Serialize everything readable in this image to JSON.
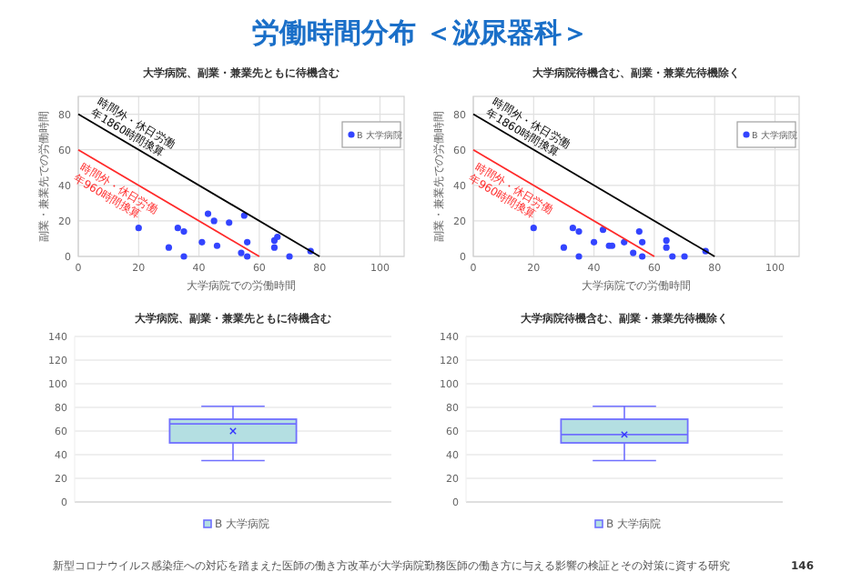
{
  "chart_data": [
    {
      "type": "scatter",
      "title": "大学病院、副業・兼業先ともに待機含む",
      "xlabel": "大学病院での労働時間",
      "ylabel": "副業・兼業先での労働時間",
      "xlim": [
        0,
        108
      ],
      "ylim": [
        0,
        90
      ],
      "xticks": [
        0,
        20,
        40,
        60,
        80,
        100
      ],
      "yticks": [
        0,
        20,
        40,
        60,
        80
      ],
      "grid": true,
      "legend": "top right",
      "annotations": [
        "労働時間分布 ＜泌尿器科＞",
        "新型コロナウイルス感染症への対応を踏まえた医師の働き方改革が大学病院勤務医師の働き方に与える影響の検証とその対策に資する研究",
        "146"
      ],
      "series": [
        {
          "name": "B 大学病院",
          "color": "#3344ff",
          "marker": "circle",
          "x": [
            20,
            30,
            33,
            35,
            35,
            41,
            43,
            45,
            46,
            50,
            54,
            55,
            56,
            56,
            65,
            65,
            66,
            70,
            77
          ],
          "values": [
            16,
            5,
            16,
            14,
            0,
            8,
            24,
            20,
            6,
            19,
            2,
            23,
            8,
            0,
            9,
            5,
            11,
            0,
            3
          ]
        },
        {
          "type": "line",
          "marker": "none",
          "name": "時間外・休日労働年1860時間換算",
          "color": "#000000",
          "x": [
            0,
            80
          ],
          "values": [
            80,
            0
          ]
        },
        {
          "type": "line",
          "marker": "none",
          "name": "時間外・休日労働年960時間換算",
          "color": "#ff2a2a",
          "x": [
            0,
            60
          ],
          "values": [
            60,
            0
          ]
        }
      ]
    },
    {
      "type": "scatter",
      "title": "大学病院待機含む、副業・兼業先待機除く",
      "xlabel": "大学病院での労働時間",
      "ylabel": "副業・兼業先での労働時間",
      "xlim": [
        0,
        108
      ],
      "ylim": [
        0,
        90
      ],
      "xticks": [
        0,
        20,
        40,
        60,
        80,
        100
      ],
      "yticks": [
        0,
        20,
        40,
        60,
        80
      ],
      "grid": true,
      "legend": "top right",
      "series": [
        {
          "name": "B 大学病院",
          "color": "#3344ff",
          "marker": "circle",
          "x": [
            20,
            30,
            33,
            35,
            35,
            40,
            43,
            45,
            46,
            50,
            53,
            55,
            56,
            56,
            64,
            64,
            66,
            70,
            77
          ],
          "values": [
            16,
            5,
            16,
            14,
            0,
            8,
            15,
            6,
            6,
            8,
            2,
            14,
            8,
            0,
            9,
            5,
            0,
            0,
            3
          ]
        },
        {
          "type": "line",
          "marker": "none",
          "name": "時間外・休日労働年1860時間換算",
          "color": "#000000",
          "x": [
            0,
            80
          ],
          "values": [
            80,
            0
          ]
        },
        {
          "type": "line",
          "marker": "none",
          "name": "時間外・休日労働年960時間換算",
          "color": "#ff2a2a",
          "x": [
            0,
            60
          ],
          "values": [
            60,
            0
          ]
        }
      ]
    },
    {
      "type": "box",
      "title": "大学病院、副業・兼業先ともに待機含む",
      "categories": [
        null
      ],
      "ylim": [
        0,
        140
      ],
      "yticks": [
        0,
        20,
        40,
        60,
        80,
        100,
        120,
        140
      ],
      "grid": "y",
      "legend": "bottom",
      "series": [
        {
          "name": "B 大学病院",
          "color": "#b4dfe2",
          "boxes": [
            {
              "low": 35,
              "q1": 50,
              "median": 66,
              "q3": 70,
              "high": 81,
              "mean": 60
            }
          ]
        }
      ]
    },
    {
      "type": "box",
      "title": "大学病院待機含む、副業・兼業先待機除く",
      "categories": [
        null
      ],
      "ylim": [
        0,
        140
      ],
      "yticks": [
        0,
        20,
        40,
        60,
        80,
        100,
        120,
        140
      ],
      "grid": "y",
      "legend": "bottom",
      "series": [
        {
          "name": "B 大学病院",
          "color": "#b4dfe2",
          "boxes": [
            {
              "low": 35,
              "q1": 50,
              "median": 57,
              "q3": 70,
              "high": 81,
              "mean": 57
            }
          ]
        }
      ]
    }
  ]
}
